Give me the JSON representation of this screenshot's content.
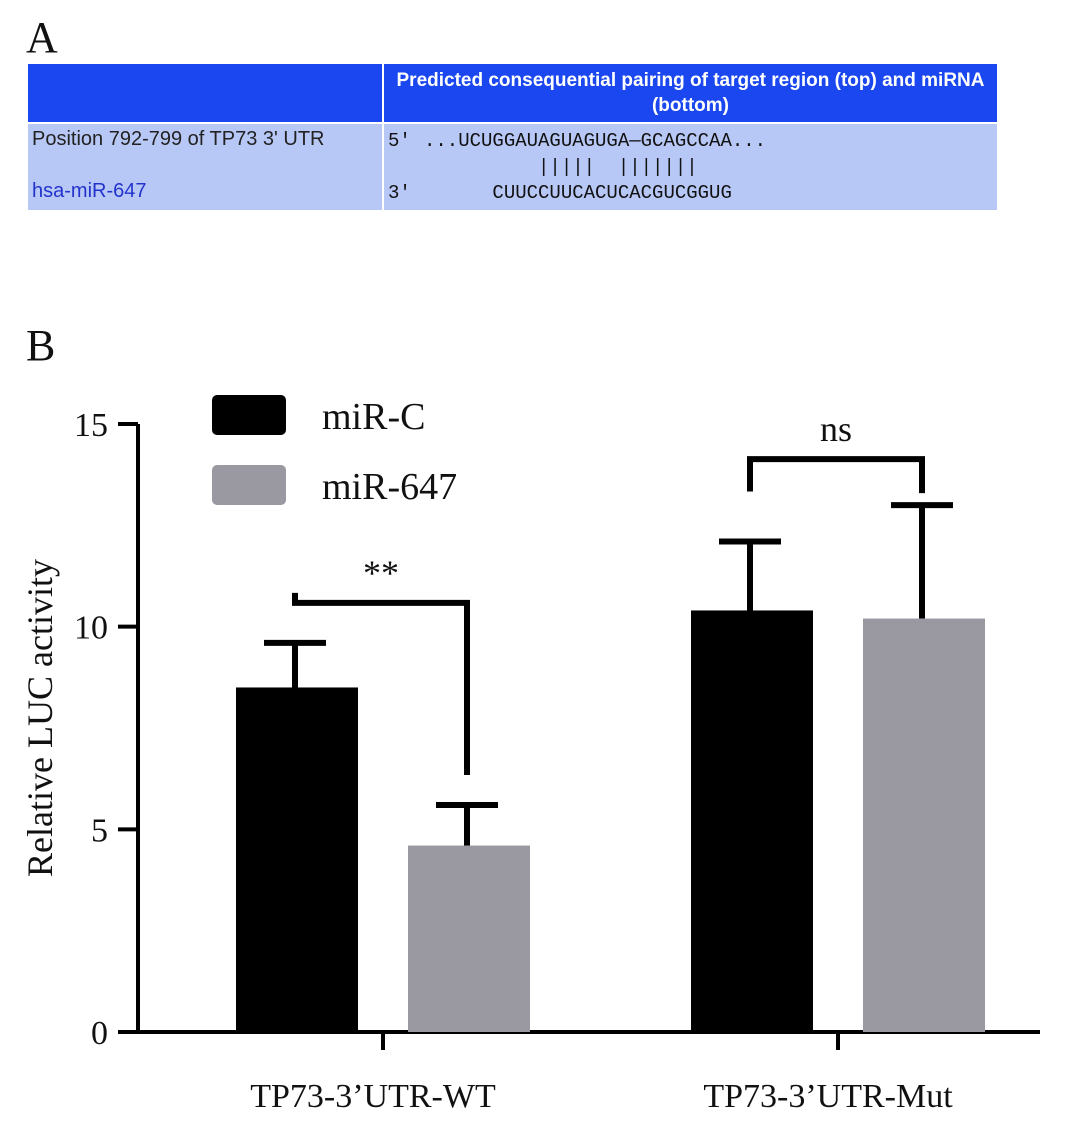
{
  "panel_a": {
    "letter": "A",
    "header": "Predicted consequential pairing of target region (top) and miRNA (bottom)",
    "position_label": "Position 792-799 of TP73 3' UTR",
    "mirna_label": "hsa-miR-647",
    "top_end": "5'",
    "top_sequence": "...UCUGGAUAGUAGUGA—GCAGCCAA...",
    "pairing": "          |||||  |||||||",
    "bottom_end": "3'",
    "bottom_sequence": "      CUUCCUUCACUCACGUCGGUG",
    "colors": {
      "header_bg": "#1a47ef",
      "row_bg": "#b8c8f6",
      "mirna_text": "#2233cc"
    }
  },
  "panel_b": {
    "letter": "B"
  },
  "chart_data": {
    "type": "bar",
    "categories": [
      "TP73-3’UTR-WT",
      "TP73-3’UTR-Mut"
    ],
    "series": [
      {
        "name": "miR-C",
        "values": [
          8.5,
          10.4
        ],
        "errors": [
          1.1,
          1.7
        ],
        "color": "#000000"
      },
      {
        "name": "miR-647",
        "values": [
          4.6,
          10.2
        ],
        "errors": [
          1.0,
          2.8
        ],
        "color": "#9a99a1"
      }
    ],
    "ylabel": "Relative LUC activity",
    "xlabel": "",
    "ylim": [
      0,
      15
    ],
    "yticks": [
      0,
      5,
      10,
      15
    ],
    "ytick_labels": [
      "0",
      "5",
      "10",
      "15"
    ],
    "grid": false,
    "legend": "top-left",
    "significance": [
      "**",
      "ns"
    ]
  }
}
